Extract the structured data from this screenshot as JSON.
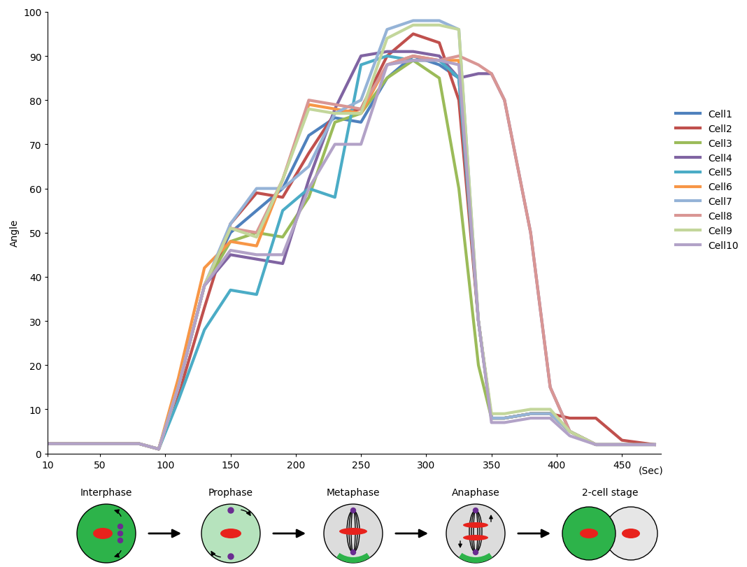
{
  "chart_data": {
    "type": "line",
    "x": [
      10,
      50,
      80,
      95,
      110,
      130,
      150,
      170,
      190,
      210,
      230,
      250,
      270,
      290,
      310,
      325,
      340,
      350,
      360,
      380,
      395,
      410,
      430,
      450,
      475
    ],
    "xlim": [
      10,
      480
    ],
    "xticks": [
      10,
      50,
      100,
      150,
      200,
      250,
      300,
      350,
      400,
      450
    ],
    "x_label": "(Sec)",
    "y_label": "Angle",
    "ylim": [
      0,
      100
    ],
    "yticks": [
      0,
      10,
      20,
      30,
      40,
      50,
      60,
      70,
      80,
      90,
      100
    ],
    "legend": "right",
    "series": [
      {
        "name": "Cell1",
        "color": "#4f81bd",
        "values": [
          2.2,
          2.2,
          2.2,
          1,
          15,
          38,
          50,
          55,
          60,
          72,
          76,
          75,
          85,
          90,
          88,
          85,
          30,
          8,
          8,
          9,
          9,
          5,
          2,
          2,
          2
        ]
      },
      {
        "name": "Cell2",
        "color": "#c0504d",
        "values": [
          2.2,
          2.2,
          2.2,
          1,
          13,
          33,
          52,
          59,
          58,
          68,
          77,
          78,
          90,
          95,
          93,
          80,
          30,
          8,
          8,
          9,
          9,
          8,
          8,
          3,
          2
        ]
      },
      {
        "name": "Cell3",
        "color": "#9bbb59",
        "values": [
          2.2,
          2.2,
          2.2,
          1,
          15,
          38,
          48,
          50,
          49,
          58,
          75,
          77,
          85,
          89,
          85,
          60,
          20,
          8,
          8,
          9,
          9,
          5,
          2,
          2,
          2
        ]
      },
      {
        "name": "Cell4",
        "color": "#8064a2",
        "values": [
          2.2,
          2.2,
          2.2,
          1,
          15,
          38,
          45,
          44,
          43,
          62,
          78,
          90,
          91,
          91,
          90,
          85,
          86,
          86,
          80,
          50,
          15,
          5,
          2,
          2,
          2
        ]
      },
      {
        "name": "Cell5",
        "color": "#4bacc6",
        "values": [
          2.2,
          2.2,
          2.2,
          1,
          12,
          28,
          37,
          36,
          55,
          60,
          58,
          88,
          90,
          89,
          89,
          85,
          30,
          8,
          8,
          9,
          9,
          5,
          2,
          2,
          2
        ]
      },
      {
        "name": "Cell6",
        "color": "#f79646",
        "values": [
          2.2,
          2.2,
          2.2,
          1,
          17,
          42,
          48,
          47,
          62,
          79,
          78,
          77,
          88,
          90,
          89,
          89,
          30,
          8,
          8,
          9,
          9,
          5,
          2,
          2,
          2
        ]
      },
      {
        "name": "Cell7",
        "color": "#95b3d7",
        "values": [
          2.2,
          2.2,
          2.2,
          1,
          15,
          38,
          52,
          60,
          60,
          65,
          77,
          80,
          96,
          98,
          98,
          96,
          30,
          8,
          8,
          9,
          9,
          5,
          2,
          2,
          2
        ]
      },
      {
        "name": "Cell8",
        "color": "#d99694",
        "values": [
          2.2,
          2.2,
          2.2,
          1,
          15,
          38,
          51,
          50,
          62,
          80,
          79,
          78,
          88,
          90,
          89,
          90,
          88,
          86,
          80,
          50,
          15,
          5,
          2,
          2,
          2
        ]
      },
      {
        "name": "Cell9",
        "color": "#c3d69b",
        "values": [
          2.2,
          2.2,
          2.2,
          1,
          15,
          38,
          51,
          49,
          62,
          78,
          77,
          77,
          94,
          97,
          97,
          96,
          30,
          9,
          9,
          10,
          10,
          5,
          2,
          2,
          2
        ]
      },
      {
        "name": "Cell10",
        "color": "#b2a2c7",
        "values": [
          2.2,
          2.2,
          2.2,
          1,
          15,
          38,
          46,
          45,
          45,
          60,
          70,
          70,
          88,
          89,
          89,
          88,
          30,
          7,
          7,
          8,
          8,
          4,
          2,
          2,
          2
        ]
      }
    ]
  },
  "diagram": {
    "stages": [
      "Interphase",
      "Prophase",
      "Metaphase",
      "Anaphase",
      "2-cell stage"
    ]
  }
}
